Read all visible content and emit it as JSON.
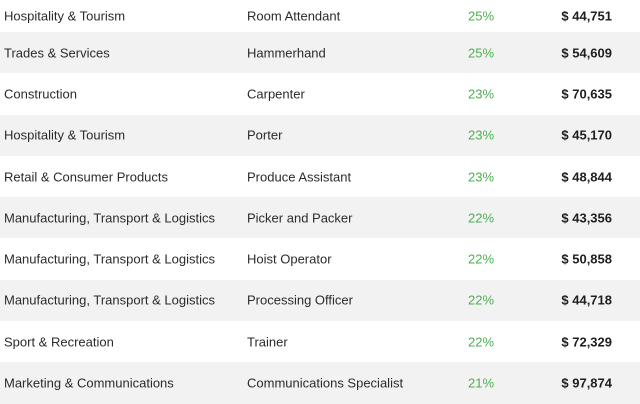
{
  "rows": [
    {
      "industry": "Hospitality & Tourism",
      "job": "Room Attendant",
      "growth": "25%",
      "salary": "$ 44,751"
    },
    {
      "industry": "Trades & Services",
      "job": "Hammerhand",
      "growth": "25%",
      "salary": "$ 54,609"
    },
    {
      "industry": "Construction",
      "job": "Carpenter",
      "growth": "23%",
      "salary": "$ 70,635"
    },
    {
      "industry": "Hospitality & Tourism",
      "job": "Porter",
      "growth": "23%",
      "salary": "$ 45,170"
    },
    {
      "industry": "Retail & Consumer Products",
      "job": "Produce Assistant",
      "growth": "23%",
      "salary": "$ 48,844"
    },
    {
      "industry": "Manufacturing, Transport & Logistics",
      "job": "Picker and Packer",
      "growth": "22%",
      "salary": "$ 43,356"
    },
    {
      "industry": "Manufacturing, Transport & Logistics",
      "job": "Hoist Operator",
      "growth": "22%",
      "salary": "$ 50,858"
    },
    {
      "industry": "Manufacturing, Transport & Logistics",
      "job": "Processing Officer",
      "growth": "22%",
      "salary": "$ 44,718"
    },
    {
      "industry": "Sport & Recreation",
      "job": "Trainer",
      "growth": "22%",
      "salary": "$ 72,329"
    },
    {
      "industry": "Marketing & Communications",
      "job": "Communications Specialist",
      "growth": "21%",
      "salary": "$ 97,874"
    }
  ],
  "colors": {
    "growth": "#4caf50",
    "row_alt_background": "#f2f2f2",
    "text": "#2b2b2b"
  }
}
